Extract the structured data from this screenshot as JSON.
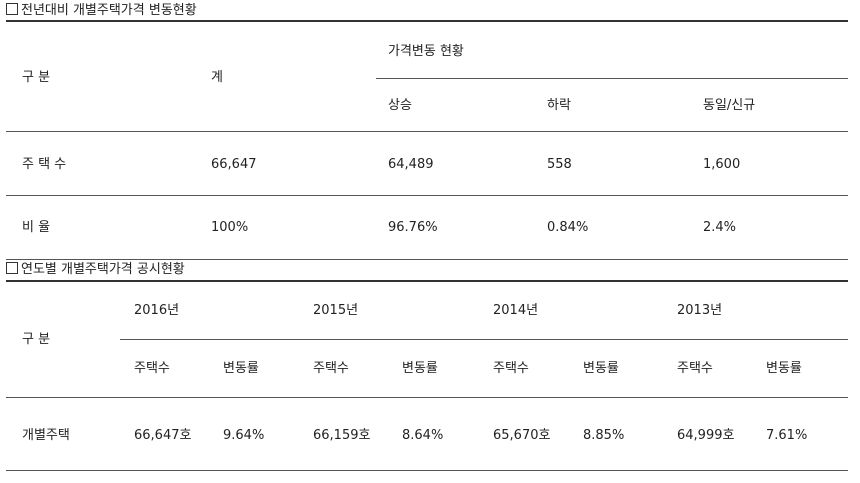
{
  "section1": {
    "title": "전년대비 개별주택가격 변동현황",
    "headers": {
      "category": "구 분",
      "total": "계",
      "change_group": "가격변동 현황",
      "up": "상승",
      "down": "하락",
      "same_new": "동일/신규"
    },
    "rows": [
      {
        "label": "주 택 수",
        "total": "66,647",
        "up": "64,489",
        "down": "558",
        "same_new": "1,600"
      },
      {
        "label": "비 율",
        "total": "100%",
        "up": "96.76%",
        "down": "0.84%",
        "same_new": "2.4%"
      }
    ]
  },
  "section2": {
    "title": "연도별 개별주택가격 공시현황",
    "headers": {
      "category": "구 분",
      "years": [
        "2016년",
        "2015년",
        "2014년",
        "2013년"
      ],
      "count": "주택수",
      "rate": "변동률"
    },
    "row": {
      "label": "개별주택",
      "values": [
        {
          "count": "66,647호",
          "rate": "9.64%"
        },
        {
          "count": "66,159호",
          "rate": "8.64%"
        },
        {
          "count": "65,670호",
          "rate": "8.85%"
        },
        {
          "count": "64,999호",
          "rate": "7.61%"
        }
      ]
    }
  }
}
